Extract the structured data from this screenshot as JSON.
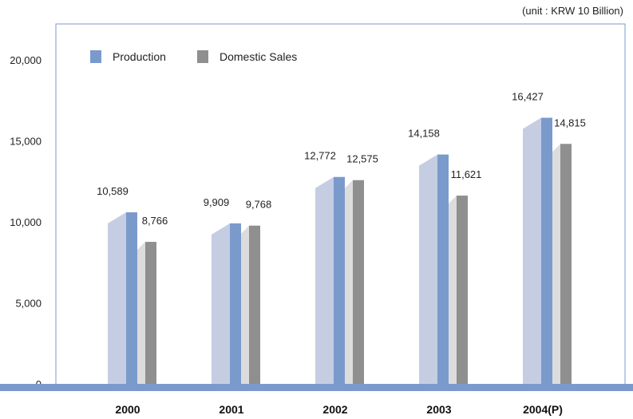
{
  "unit_note": "(unit : KRW 10 Billion)",
  "chart_data": {
    "type": "bar",
    "categories": [
      "2000",
      "2001",
      "2002",
      "2003",
      "2004(P)"
    ],
    "series": [
      {
        "name": "Production",
        "values": [
          10589,
          9909,
          12772,
          14158,
          16427
        ],
        "labels": [
          "10,589",
          "9,909",
          "12,772",
          "14,158",
          "16,427"
        ]
      },
      {
        "name": "Domestic Sales",
        "values": [
          8766,
          9768,
          12575,
          11621,
          14815
        ],
        "labels": [
          "8,766",
          "9,768",
          "12,575",
          "11,621",
          "14,815"
        ]
      }
    ],
    "yticks": [
      "0",
      "5,000",
      "10,000",
      "15,000",
      "20,000"
    ],
    "ylim": [
      0,
      20000
    ],
    "legend_position": "top-left",
    "colors": {
      "production": "#7b9acc",
      "production_shadow": "#c5cde3",
      "sales": "#8f8f8f",
      "sales_shadow": "#dcdcdc",
      "baseline": "#7b9acc",
      "frame": "#7b9acc"
    }
  }
}
